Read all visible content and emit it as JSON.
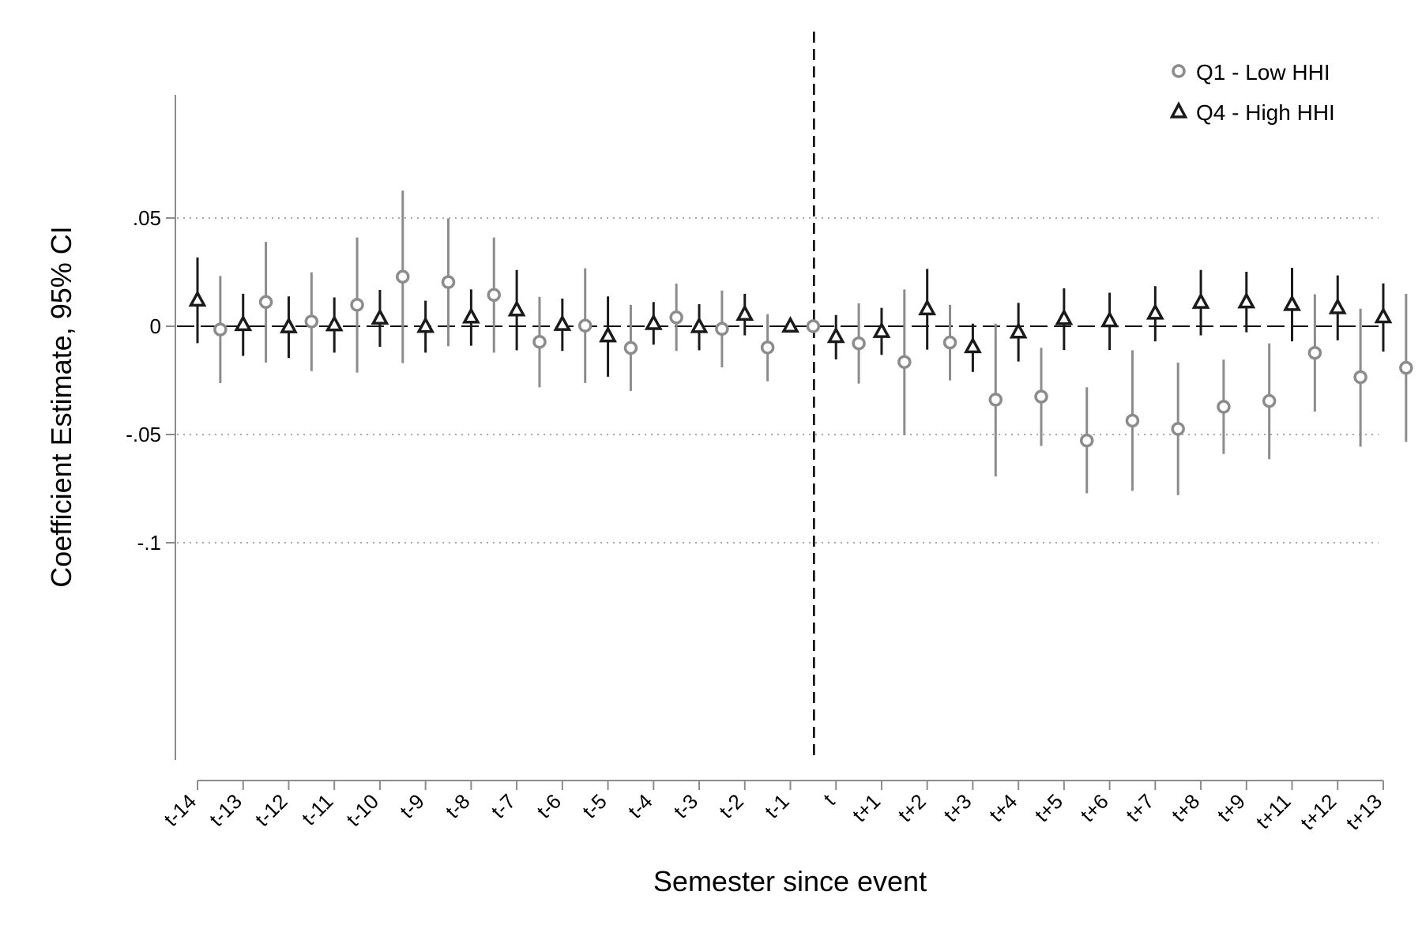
{
  "chart_data": {
    "type": "scatter",
    "xlabel": "Semester since event",
    "ylabel": "Coefficient Estimate, 95% CI",
    "ylim": [
      -0.1,
      0.063
    ],
    "yticks": [
      0.05,
      0,
      -0.05,
      -0.1
    ],
    "ytick_labels": [
      ".05",
      "0",
      "-.05",
      "-.1"
    ],
    "event_line_at": 0,
    "grid": "horizontal dotted at y ticks",
    "legend_position": "top-right",
    "categories": [
      "t-14",
      "t-13",
      "t-12",
      "t-11",
      "t-10",
      "t-9",
      "t-8",
      "t-7",
      "t-6",
      "t-5",
      "t-4",
      "t-3",
      "t-2",
      "t-1",
      "t",
      "t+1",
      "t+2",
      "t+3",
      "t+4",
      "t+5",
      "t+6",
      "t+7",
      "t+8",
      "t+9",
      "t+11",
      "t+12",
      "t+13"
    ],
    "series": [
      {
        "name": "Q1 - Low HHI",
        "marker": "circle",
        "color": "#8c8c8c",
        "x_offset": 0.5,
        "values": [
          -0.0015,
          0.0112,
          0.0022,
          0.0099,
          0.0229,
          0.0204,
          0.0145,
          -0.0072,
          0.0003,
          -0.01,
          0.0041,
          -0.0012,
          -0.0098,
          0,
          -0.0079,
          -0.0165,
          -0.0075,
          -0.0339,
          -0.0325,
          -0.0528,
          -0.0436,
          -0.0474,
          -0.0372,
          -0.0345,
          -0.0123,
          -0.0235,
          -0.0192
        ],
        "ci_low": [
          -0.0263,
          -0.0168,
          -0.0207,
          -0.0214,
          -0.017,
          -0.0092,
          -0.0122,
          -0.0282,
          -0.0262,
          -0.0299,
          -0.0114,
          -0.019,
          -0.0254,
          0,
          -0.0265,
          -0.0503,
          -0.025,
          -0.0694,
          -0.0553,
          -0.0772,
          -0.076,
          -0.078,
          -0.059,
          -0.0614,
          -0.0394,
          -0.0556,
          -0.0534
        ],
        "ci_high": [
          0.0232,
          0.039,
          0.0249,
          0.041,
          0.0627,
          0.0498,
          0.041,
          0.0136,
          0.0268,
          0.0099,
          0.0197,
          0.0165,
          0.0056,
          0,
          0.0106,
          0.017,
          0.0099,
          0.0012,
          -0.0099,
          -0.0282,
          -0.0111,
          -0.0168,
          -0.0154,
          -0.0079,
          0.0148,
          0.0081,
          0.015
        ]
      },
      {
        "name": "Q4 - High HHI",
        "marker": "triangle",
        "color": "#1a1a1a",
        "x_offset": 0,
        "values": [
          0.012,
          0.0007,
          -0.0003,
          0.0006,
          0.0037,
          -0.0001,
          0.0042,
          0.0075,
          0.0008,
          -0.0045,
          0.0012,
          -0.0002,
          0.0055,
          0,
          -0.0048,
          -0.0025,
          0.008,
          -0.0095,
          -0.0027,
          0.0035,
          0.0025,
          0.006,
          0.011,
          0.0112,
          0.01,
          0.0085,
          0.0043
        ],
        "ci_low": [
          -0.0078,
          -0.0137,
          -0.0147,
          -0.0122,
          -0.0095,
          -0.0122,
          -0.009,
          -0.0111,
          -0.0114,
          -0.0233,
          -0.0085,
          -0.0111,
          -0.0042,
          0,
          -0.0153,
          -0.0132,
          -0.0108,
          -0.0211,
          -0.0163,
          -0.011,
          -0.011,
          -0.007,
          -0.0042,
          -0.0028,
          -0.007,
          -0.0065,
          -0.0117
        ],
        "ci_high": [
          0.0318,
          0.015,
          0.0138,
          0.0133,
          0.0168,
          0.0118,
          0.017,
          0.026,
          0.0128,
          0.0138,
          0.0112,
          0.0102,
          0.015,
          0,
          0.0052,
          0.0085,
          0.0265,
          0.0012,
          0.0108,
          0.0175,
          0.0155,
          0.0185,
          0.026,
          0.0252,
          0.027,
          0.0235,
          0.0198
        ]
      }
    ]
  }
}
